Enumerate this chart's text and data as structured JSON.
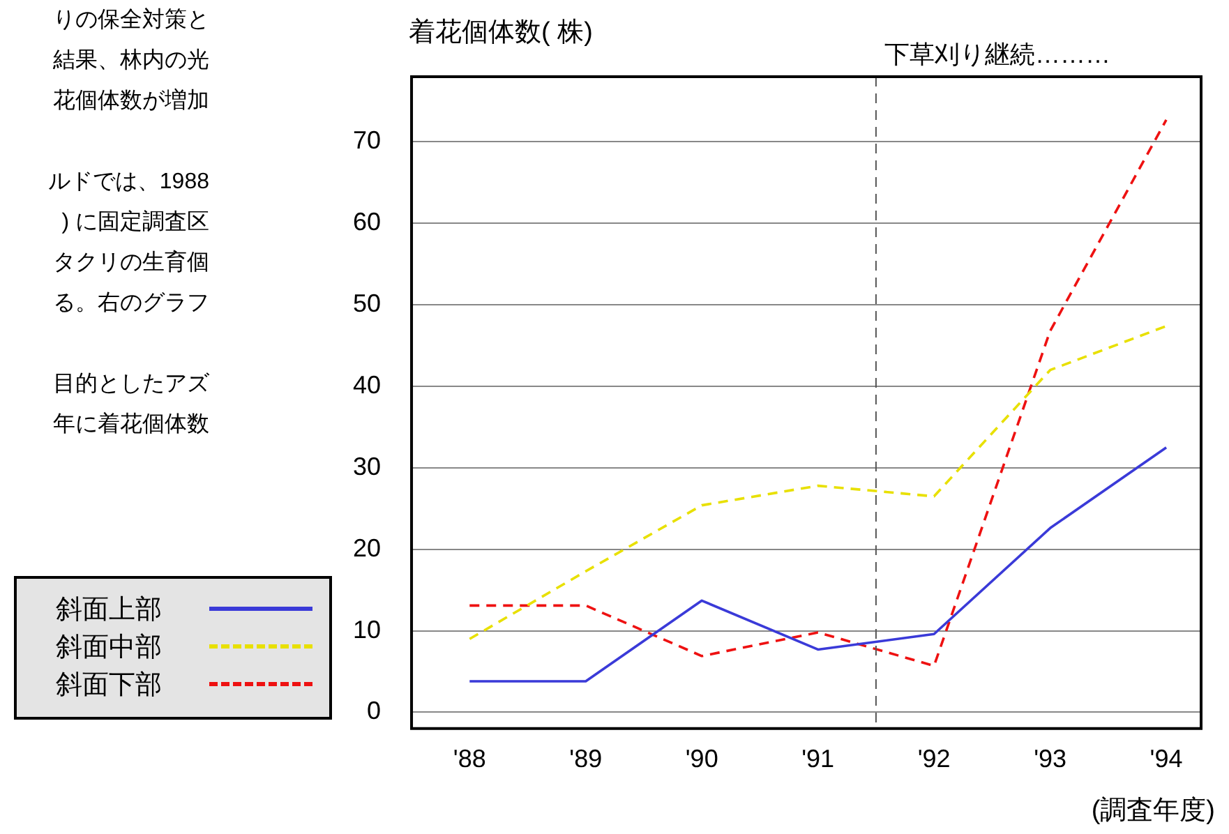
{
  "chart_data": {
    "type": "line",
    "ylabel": "着花個体数( 株)",
    "xlabel": "(調査年度)",
    "x": [
      1988,
      1989,
      1990,
      1991,
      1992,
      1993,
      1994
    ],
    "xlim": [
      1987.5,
      1994.3
    ],
    "xticks": [
      {
        "value": 1988,
        "label": "'88"
      },
      {
        "value": 1989,
        "label": "'89"
      },
      {
        "value": 1990,
        "label": "'90"
      },
      {
        "value": 1991,
        "label": "'91"
      },
      {
        "value": 1992,
        "label": "'92"
      },
      {
        "value": 1993,
        "label": "'93"
      },
      {
        "value": 1994,
        "label": "'94"
      }
    ],
    "ylim": [
      -2,
      78
    ],
    "yticks": [
      0,
      10,
      20,
      30,
      40,
      50,
      60,
      70
    ],
    "grid": "y",
    "legend": "bottom left",
    "marker": "none",
    "series": [
      {
        "name": "斜面上部",
        "color": "#3a3ad8",
        "line_style": "solid",
        "values": [
          3.8,
          3.8,
          13.7,
          7.7,
          9.6,
          22.6,
          32.5
        ]
      },
      {
        "name": "斜面中部",
        "color": "#e8e000",
        "line_style": "dashed",
        "values": [
          9.0,
          17.3,
          25.4,
          27.8,
          26.5,
          42.0,
          47.4
        ]
      },
      {
        "name": "斜面下部",
        "color": "#ee1111",
        "line_style": "dashed",
        "values": [
          13.1,
          13.1,
          6.9,
          9.8,
          5.7,
          46.8,
          72.7
        ]
      }
    ],
    "ref_lines": [
      {
        "axis": "x",
        "value": 1991.5,
        "label": "下草刈り継続………",
        "color": "#555555",
        "line_style": "dashed"
      }
    ],
    "annotations": [
      "りの保全対策と",
      "結果、林内の光",
      "花個体数が増加",
      "ルドでは、1988",
      ") に固定調査区",
      "タクリの生育個",
      "る。右のグラフ",
      "目的としたアズ",
      "年に着花個体数"
    ]
  }
}
